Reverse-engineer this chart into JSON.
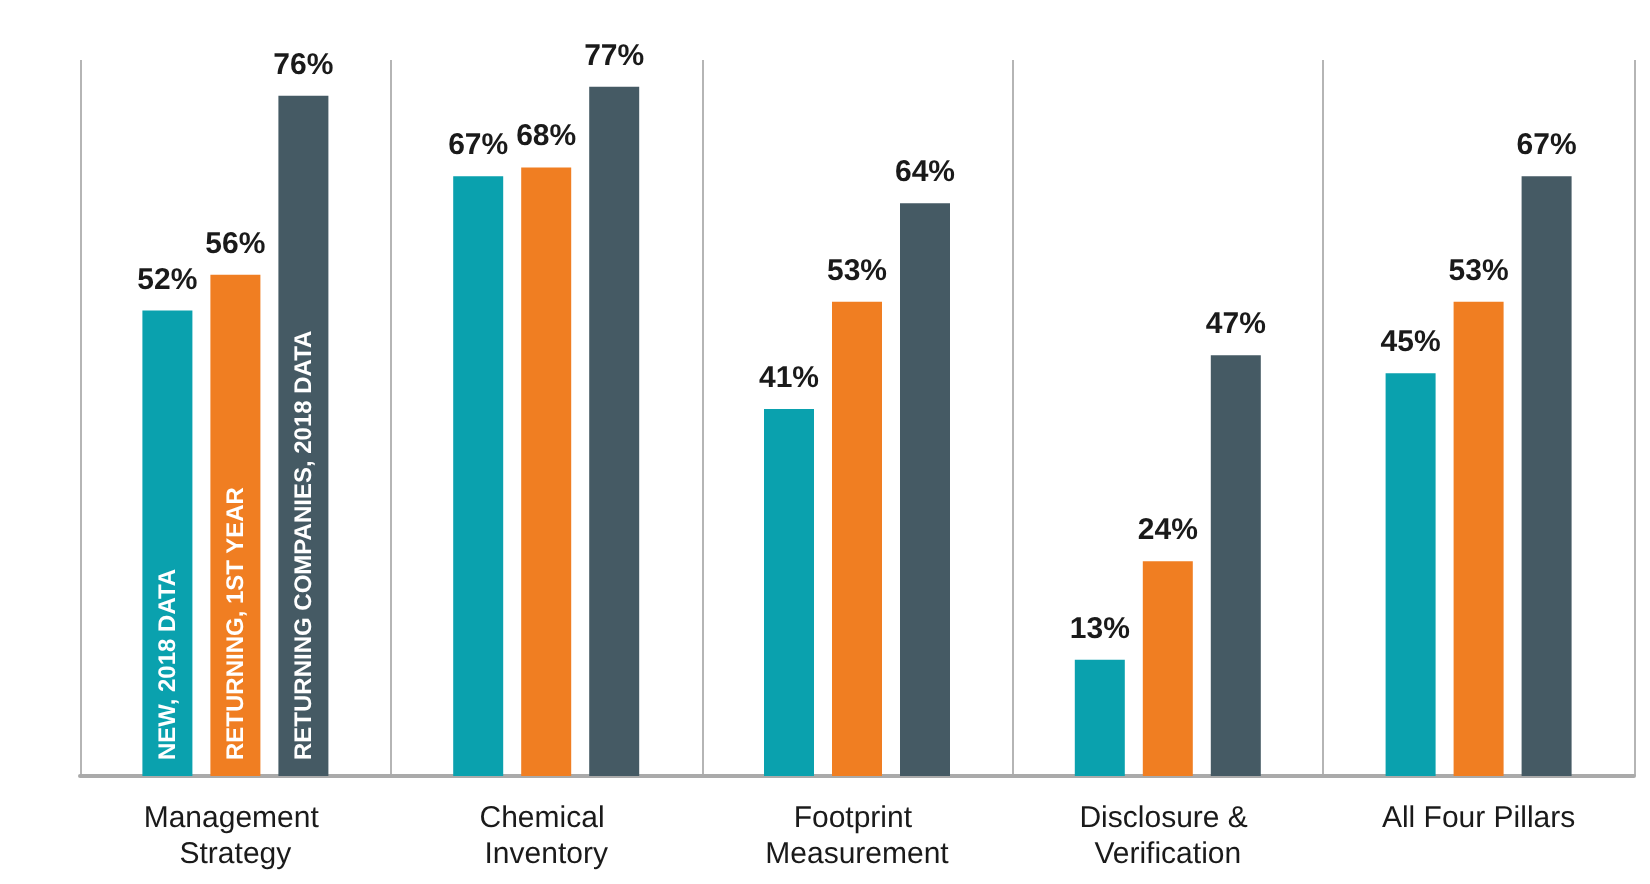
{
  "chart_data": {
    "type": "bar",
    "categories": [
      "Management Strategy",
      "Chemical Inventory",
      "Footprint Measurement",
      "Disclosure & Verification",
      "All Four Pillars"
    ],
    "series": [
      {
        "name": "NEW, 2018 DATA",
        "color": "#0aa1ae",
        "values": [
          52,
          67,
          41,
          13,
          45
        ],
        "value_labels": [
          "52%",
          "67%",
          "41%",
          "13%",
          "45%"
        ]
      },
      {
        "name": "RETURNING, 1ST YEAR",
        "color": "#f07e22",
        "values": [
          56,
          68,
          53,
          24,
          53
        ],
        "value_labels": [
          "56%",
          "68%",
          "53%",
          "24%",
          "53%"
        ]
      },
      {
        "name": "RETURNING COMPANIES, 2018 DATA",
        "color": "#455a64",
        "values": [
          76,
          77,
          64,
          47,
          67
        ],
        "value_labels": [
          "76%",
          "77%",
          "64%",
          "47%",
          "67%"
        ]
      }
    ],
    "grid": "x"
  }
}
